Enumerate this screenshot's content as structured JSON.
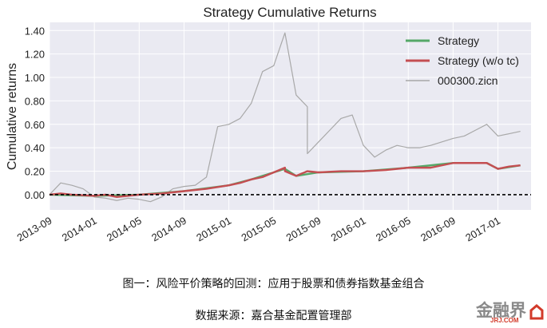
{
  "chart_data": {
    "type": "line",
    "title": "Strategy Cumulative Returns",
    "ylabel": "Cumulative returns",
    "xlabel": "",
    "x_ticks": [
      "2013-09",
      "2014-01",
      "2014-05",
      "2014-09",
      "2015-01",
      "2015-05",
      "2015-09",
      "2016-01",
      "2016-05",
      "2016-09",
      "2017-01"
    ],
    "y_ticks": [
      "0.00",
      "0.20",
      "0.40",
      "0.60",
      "0.80",
      "1.00",
      "1.20",
      "1.40"
    ],
    "ylim": [
      -0.13,
      1.47
    ],
    "xlim": [
      "2013-09",
      "2017-03"
    ],
    "grid": true,
    "legend_position": "top-right",
    "reference_line": 0.0,
    "series": [
      {
        "name": "Strategy",
        "color": "#55a868",
        "points": [
          [
            "2013-09",
            0.0
          ],
          [
            "2014-01",
            -0.01
          ],
          [
            "2014-05",
            0.0
          ],
          [
            "2014-09",
            0.03
          ],
          [
            "2015-01",
            0.08
          ],
          [
            "2015-03",
            0.13
          ],
          [
            "2015-05",
            0.19
          ],
          [
            "2015-06",
            0.22
          ],
          [
            "2015-07",
            0.16
          ],
          [
            "2015-09",
            0.19
          ],
          [
            "2016-01",
            0.2
          ],
          [
            "2016-05",
            0.23
          ],
          [
            "2016-09",
            0.27
          ],
          [
            "2016-12",
            0.27
          ],
          [
            "2017-01",
            0.22
          ],
          [
            "2017-03",
            0.25
          ]
        ]
      },
      {
        "name": "Strategy (w/o tc)",
        "color": "#c44e52",
        "points": [
          [
            "2013-09",
            0.0
          ],
          [
            "2013-10",
            0.01
          ],
          [
            "2013-11",
            0.0
          ],
          [
            "2014-01",
            -0.01
          ],
          [
            "2014-02",
            0.0
          ],
          [
            "2014-03",
            -0.02
          ],
          [
            "2014-05",
            0.0
          ],
          [
            "2014-07",
            0.01
          ],
          [
            "2014-09",
            0.03
          ],
          [
            "2014-11",
            0.05
          ],
          [
            "2015-01",
            0.08
          ],
          [
            "2015-02",
            0.1
          ],
          [
            "2015-03",
            0.13
          ],
          [
            "2015-04",
            0.15
          ],
          [
            "2015-05",
            0.19
          ],
          [
            "2015-06",
            0.23
          ],
          [
            "2015-06",
            0.2
          ],
          [
            "2015-07",
            0.16
          ],
          [
            "2015-08",
            0.2
          ],
          [
            "2015-09",
            0.19
          ],
          [
            "2015-11",
            0.2
          ],
          [
            "2016-01",
            0.2
          ],
          [
            "2016-03",
            0.21
          ],
          [
            "2016-05",
            0.23
          ],
          [
            "2016-07",
            0.23
          ],
          [
            "2016-09",
            0.27
          ],
          [
            "2016-11",
            0.27
          ],
          [
            "2016-12",
            0.27
          ],
          [
            "2017-01",
            0.22
          ],
          [
            "2017-02",
            0.24
          ],
          [
            "2017-03",
            0.25
          ]
        ]
      },
      {
        "name": "000300.zicn",
        "color": "#a8a8a8",
        "points": [
          [
            "2013-09",
            0.0
          ],
          [
            "2013-10",
            0.1
          ],
          [
            "2013-11",
            0.08
          ],
          [
            "2013-12",
            0.05
          ],
          [
            "2014-01",
            -0.02
          ],
          [
            "2014-02",
            -0.03
          ],
          [
            "2014-03",
            -0.05
          ],
          [
            "2014-04",
            -0.03
          ],
          [
            "2014-05",
            -0.04
          ],
          [
            "2014-06",
            -0.06
          ],
          [
            "2014-07",
            -0.02
          ],
          [
            "2014-08",
            0.05
          ],
          [
            "2014-09",
            0.07
          ],
          [
            "2014-10",
            0.08
          ],
          [
            "2014-11",
            0.15
          ],
          [
            "2014-12",
            0.58
          ],
          [
            "2015-01",
            0.6
          ],
          [
            "2015-02",
            0.65
          ],
          [
            "2015-03",
            0.78
          ],
          [
            "2015-04",
            1.05
          ],
          [
            "2015-05",
            1.1
          ],
          [
            "2015-06",
            1.38
          ],
          [
            "2015-07",
            0.85
          ],
          [
            "2015-08",
            0.75
          ],
          [
            "2015-08",
            0.35
          ],
          [
            "2015-09",
            0.45
          ],
          [
            "2015-10",
            0.55
          ],
          [
            "2015-11",
            0.65
          ],
          [
            "2015-12",
            0.68
          ],
          [
            "2016-01",
            0.42
          ],
          [
            "2016-02",
            0.32
          ],
          [
            "2016-03",
            0.38
          ],
          [
            "2016-04",
            0.42
          ],
          [
            "2016-05",
            0.4
          ],
          [
            "2016-06",
            0.4
          ],
          [
            "2016-07",
            0.42
          ],
          [
            "2016-08",
            0.45
          ],
          [
            "2016-09",
            0.48
          ],
          [
            "2016-10",
            0.5
          ],
          [
            "2016-11",
            0.55
          ],
          [
            "2016-12",
            0.6
          ],
          [
            "2017-01",
            0.5
          ],
          [
            "2017-02",
            0.52
          ],
          [
            "2017-03",
            0.54
          ]
        ]
      }
    ]
  },
  "figure_caption": "图一：风险平价策略的回测：应用于股票和债券指数基金组合",
  "source_line": "数据来源：嘉合基金配置管理部",
  "logo": {
    "text": "金融界",
    "sub": "JRJ.COM"
  }
}
